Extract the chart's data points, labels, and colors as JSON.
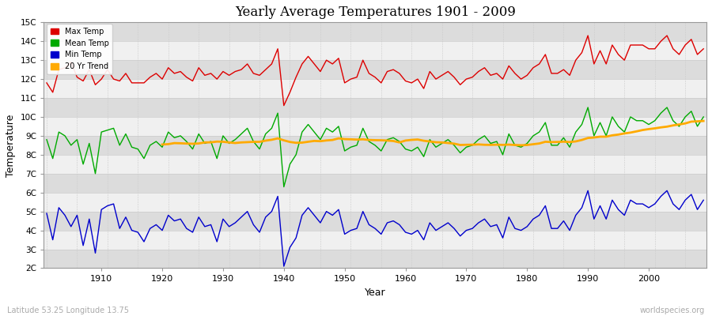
{
  "title": "Yearly Average Temperatures 1901 - 2009",
  "xlabel": "Year",
  "ylabel": "Temperature",
  "subtitle_left": "Latitude 53.25 Longitude 13.75",
  "subtitle_right": "worldspecies.org",
  "years": [
    1901,
    1902,
    1903,
    1904,
    1905,
    1906,
    1907,
    1908,
    1909,
    1910,
    1911,
    1912,
    1913,
    1914,
    1915,
    1916,
    1917,
    1918,
    1919,
    1920,
    1921,
    1922,
    1923,
    1924,
    1925,
    1926,
    1927,
    1928,
    1929,
    1930,
    1931,
    1932,
    1933,
    1934,
    1935,
    1936,
    1937,
    1938,
    1939,
    1940,
    1941,
    1942,
    1943,
    1944,
    1945,
    1946,
    1947,
    1948,
    1949,
    1950,
    1951,
    1952,
    1953,
    1954,
    1955,
    1956,
    1957,
    1958,
    1959,
    1960,
    1961,
    1962,
    1963,
    1964,
    1965,
    1966,
    1967,
    1968,
    1969,
    1970,
    1971,
    1972,
    1973,
    1974,
    1975,
    1976,
    1977,
    1978,
    1979,
    1980,
    1981,
    1982,
    1983,
    1984,
    1985,
    1986,
    1987,
    1988,
    1989,
    1990,
    1991,
    1992,
    1993,
    1994,
    1995,
    1996,
    1997,
    1998,
    1999,
    2000,
    2001,
    2002,
    2003,
    2004,
    2005,
    2006,
    2007,
    2008,
    2009
  ],
  "max_temp": [
    11.8,
    11.3,
    12.5,
    12.6,
    12.9,
    12.1,
    11.9,
    12.5,
    11.7,
    12.0,
    12.5,
    12.0,
    11.9,
    12.3,
    11.8,
    11.8,
    11.8,
    12.1,
    12.3,
    12.0,
    12.6,
    12.3,
    12.4,
    12.1,
    11.9,
    12.6,
    12.2,
    12.3,
    12.0,
    12.4,
    12.2,
    12.4,
    12.5,
    12.8,
    12.3,
    12.2,
    12.5,
    12.8,
    13.6,
    10.6,
    11.3,
    12.1,
    12.8,
    13.2,
    12.8,
    12.4,
    13.0,
    12.8,
    13.1,
    11.8,
    12.0,
    12.1,
    13.0,
    12.3,
    12.1,
    11.8,
    12.4,
    12.5,
    12.3,
    11.9,
    11.8,
    12.0,
    11.5,
    12.4,
    12.0,
    12.2,
    12.4,
    12.1,
    11.7,
    12.0,
    12.1,
    12.4,
    12.6,
    12.2,
    12.3,
    12.0,
    12.7,
    12.3,
    12.0,
    12.2,
    12.6,
    12.8,
    13.3,
    12.3,
    12.3,
    12.5,
    12.2,
    13.0,
    13.4,
    14.3,
    12.8,
    13.5,
    12.8,
    13.8,
    13.3,
    13.0,
    13.8,
    13.8,
    13.8,
    13.6,
    13.6,
    14.0,
    14.3,
    13.6,
    13.3,
    13.8,
    14.1,
    13.3,
    13.6
  ],
  "mean_temp": [
    8.8,
    7.8,
    9.2,
    9.0,
    8.5,
    8.8,
    7.5,
    8.6,
    7.0,
    9.2,
    9.3,
    9.4,
    8.5,
    9.1,
    8.4,
    8.3,
    7.8,
    8.5,
    8.7,
    8.4,
    9.2,
    8.9,
    9.0,
    8.7,
    8.3,
    9.1,
    8.6,
    8.7,
    7.8,
    9.0,
    8.6,
    8.8,
    9.1,
    9.4,
    8.7,
    8.3,
    9.1,
    9.4,
    10.2,
    6.3,
    7.5,
    8.0,
    9.2,
    9.6,
    9.2,
    8.8,
    9.4,
    9.2,
    9.5,
    8.2,
    8.4,
    8.5,
    9.4,
    8.7,
    8.5,
    8.2,
    8.8,
    8.9,
    8.7,
    8.3,
    8.2,
    8.4,
    7.9,
    8.8,
    8.4,
    8.6,
    8.8,
    8.5,
    8.1,
    8.4,
    8.5,
    8.8,
    9.0,
    8.6,
    8.7,
    8.0,
    9.1,
    8.5,
    8.4,
    8.6,
    9.0,
    9.2,
    9.7,
    8.5,
    8.5,
    8.9,
    8.4,
    9.2,
    9.6,
    10.5,
    9.0,
    9.7,
    9.0,
    10.0,
    9.5,
    9.2,
    10.0,
    9.8,
    9.8,
    9.6,
    9.8,
    10.2,
    10.5,
    9.8,
    9.5,
    10.0,
    10.3,
    9.5,
    10.0
  ],
  "min_temp": [
    4.9,
    3.5,
    5.2,
    4.8,
    4.2,
    4.8,
    3.2,
    4.6,
    2.8,
    5.1,
    5.3,
    5.4,
    4.1,
    4.7,
    4.0,
    3.9,
    3.4,
    4.1,
    4.3,
    4.0,
    4.8,
    4.5,
    4.6,
    4.1,
    3.9,
    4.7,
    4.2,
    4.3,
    3.4,
    4.6,
    4.2,
    4.4,
    4.7,
    5.0,
    4.3,
    3.9,
    4.7,
    5.0,
    5.8,
    2.1,
    3.1,
    3.6,
    4.8,
    5.2,
    4.8,
    4.4,
    5.0,
    4.8,
    5.1,
    3.8,
    4.0,
    4.1,
    5.0,
    4.3,
    4.1,
    3.8,
    4.4,
    4.5,
    4.3,
    3.9,
    3.8,
    4.0,
    3.5,
    4.4,
    4.0,
    4.2,
    4.4,
    4.1,
    3.7,
    4.0,
    4.1,
    4.4,
    4.6,
    4.2,
    4.3,
    3.6,
    4.7,
    4.1,
    4.0,
    4.2,
    4.6,
    4.8,
    5.3,
    4.1,
    4.1,
    4.5,
    4.0,
    4.8,
    5.2,
    6.1,
    4.6,
    5.3,
    4.6,
    5.6,
    5.1,
    4.8,
    5.6,
    5.4,
    5.4,
    5.2,
    5.4,
    5.8,
    6.1,
    5.4,
    5.1,
    5.6,
    5.9,
    5.1,
    5.6
  ],
  "bg_color": "#ffffff",
  "band_light": "#f0f0f0",
  "band_dark": "#dcdcdc",
  "max_color": "#dd0000",
  "mean_color": "#00aa00",
  "min_color": "#0000cc",
  "trend_color": "#ffaa00",
  "ylim_min": 2,
  "ylim_max": 15,
  "yticks": [
    2,
    3,
    4,
    5,
    6,
    7,
    8,
    9,
    10,
    11,
    12,
    13,
    14,
    15
  ],
  "ytick_labels": [
    "2C",
    "3C",
    "4C",
    "5C",
    "6C",
    "7C",
    "8C",
    "9C",
    "10C",
    "11C",
    "12C",
    "13C",
    "14C",
    "15C"
  ],
  "xticks": [
    1910,
    1920,
    1930,
    1940,
    1950,
    1960,
    1970,
    1980,
    1990,
    2000
  ],
  "grid_color": "#cccccc",
  "trend_window": 20,
  "linewidth": 1.0,
  "trend_linewidth": 2.0
}
